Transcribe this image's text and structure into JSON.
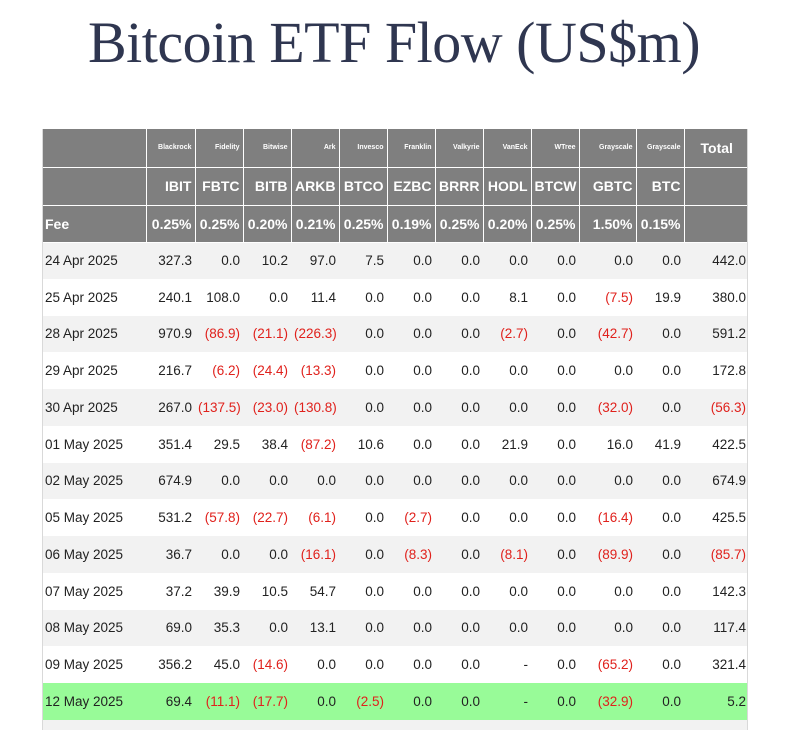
{
  "title": "Bitcoin ETF Flow (US$m)",
  "colors": {
    "header_bg": "#7f7f7f",
    "negative": "#e0211c",
    "highlight_row": "#98fb98",
    "title": "#2f3650"
  },
  "columns": [
    {
      "issuer": "Blackrock",
      "ticker": "IBIT",
      "fee": "0.25%"
    },
    {
      "issuer": "Fidelity",
      "ticker": "FBTC",
      "fee": "0.25%"
    },
    {
      "issuer": "Bitwise",
      "ticker": "BITB",
      "fee": "0.20%"
    },
    {
      "issuer": "Ark",
      "ticker": "ARKB",
      "fee": "0.21%"
    },
    {
      "issuer": "Invesco",
      "ticker": "BTCO",
      "fee": "0.25%"
    },
    {
      "issuer": "Franklin",
      "ticker": "EZBC",
      "fee": "0.19%"
    },
    {
      "issuer": "Valkyrie",
      "ticker": "BRRR",
      "fee": "0.25%"
    },
    {
      "issuer": "VanEck",
      "ticker": "HODL",
      "fee": "0.20%"
    },
    {
      "issuer": "WTree",
      "ticker": "BTCW",
      "fee": "0.25%"
    },
    {
      "issuer": "Grayscale",
      "ticker": "GBTC",
      "fee": "1.50%"
    },
    {
      "issuer": "Grayscale",
      "ticker": "BTC",
      "fee": "0.15%"
    }
  ],
  "total_label": "Total",
  "fee_label": "Fee",
  "rows": [
    {
      "date": "24 Apr 2025",
      "values": [
        "327.3",
        "0.0",
        "10.2",
        "97.0",
        "7.5",
        "0.0",
        "0.0",
        "0.0",
        "0.0",
        "0.0",
        "0.0"
      ],
      "total": "442.0"
    },
    {
      "date": "25 Apr 2025",
      "values": [
        "240.1",
        "108.0",
        "0.0",
        "11.4",
        "0.0",
        "0.0",
        "0.0",
        "8.1",
        "0.0",
        "(7.5)",
        "19.9"
      ],
      "total": "380.0"
    },
    {
      "date": "28 Apr 2025",
      "values": [
        "970.9",
        "(86.9)",
        "(21.1)",
        "(226.3)",
        "0.0",
        "0.0",
        "0.0",
        "(2.7)",
        "0.0",
        "(42.7)",
        "0.0"
      ],
      "total": "591.2"
    },
    {
      "date": "29 Apr 2025",
      "values": [
        "216.7",
        "(6.2)",
        "(24.4)",
        "(13.3)",
        "0.0",
        "0.0",
        "0.0",
        "0.0",
        "0.0",
        "0.0",
        "0.0"
      ],
      "total": "172.8"
    },
    {
      "date": "30 Apr 2025",
      "values": [
        "267.0",
        "(137.5)",
        "(23.0)",
        "(130.8)",
        "0.0",
        "0.0",
        "0.0",
        "0.0",
        "0.0",
        "(32.0)",
        "0.0"
      ],
      "total": "(56.3)"
    },
    {
      "date": "01 May 2025",
      "values": [
        "351.4",
        "29.5",
        "38.4",
        "(87.2)",
        "10.6",
        "0.0",
        "0.0",
        "21.9",
        "0.0",
        "16.0",
        "41.9"
      ],
      "total": "422.5"
    },
    {
      "date": "02 May 2025",
      "values": [
        "674.9",
        "0.0",
        "0.0",
        "0.0",
        "0.0",
        "0.0",
        "0.0",
        "0.0",
        "0.0",
        "0.0",
        "0.0"
      ],
      "total": "674.9"
    },
    {
      "date": "05 May 2025",
      "values": [
        "531.2",
        "(57.8)",
        "(22.7)",
        "(6.1)",
        "0.0",
        "(2.7)",
        "0.0",
        "0.0",
        "0.0",
        "(16.4)",
        "0.0"
      ],
      "total": "425.5"
    },
    {
      "date": "06 May 2025",
      "values": [
        "36.7",
        "0.0",
        "0.0",
        "(16.1)",
        "0.0",
        "(8.3)",
        "0.0",
        "(8.1)",
        "0.0",
        "(89.9)",
        "0.0"
      ],
      "total": "(85.7)"
    },
    {
      "date": "07 May 2025",
      "values": [
        "37.2",
        "39.9",
        "10.5",
        "54.7",
        "0.0",
        "0.0",
        "0.0",
        "0.0",
        "0.0",
        "0.0",
        "0.0"
      ],
      "total": "142.3"
    },
    {
      "date": "08 May 2025",
      "values": [
        "69.0",
        "35.3",
        "0.0",
        "13.1",
        "0.0",
        "0.0",
        "0.0",
        "0.0",
        "0.0",
        "0.0",
        "0.0"
      ],
      "total": "117.4"
    },
    {
      "date": "09 May 2025",
      "values": [
        "356.2",
        "45.0",
        "(14.6)",
        "0.0",
        "0.0",
        "0.0",
        "0.0",
        "-",
        "0.0",
        "(65.2)",
        "0.0"
      ],
      "total": "321.4"
    },
    {
      "date": "12 May 2025",
      "values": [
        "69.4",
        "(11.1)",
        "(17.7)",
        "0.0",
        "(2.5)",
        "0.0",
        "0.0",
        "-",
        "0.0",
        "(32.9)",
        "0.0"
      ],
      "total": "5.2",
      "highlight": true
    }
  ]
}
